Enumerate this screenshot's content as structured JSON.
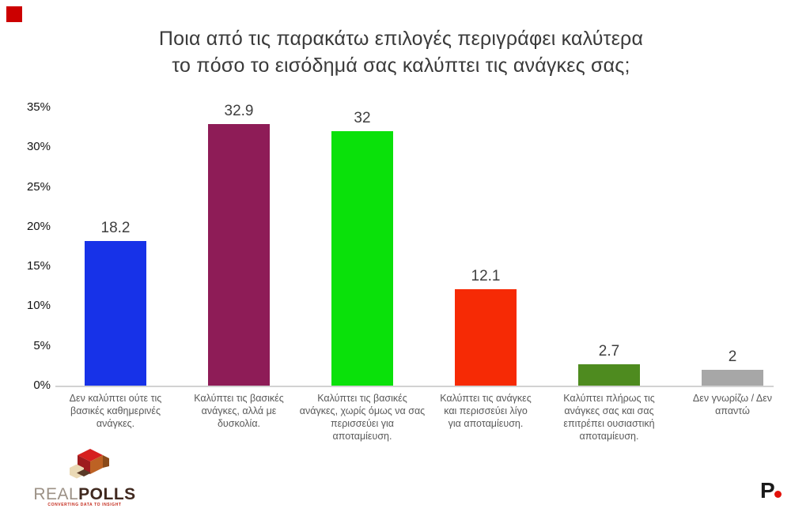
{
  "title": {
    "text": "Ποια από τις παρακάτω επιλογές περιγράφει καλύτερα\nτο πόσο το εισόδημά σας καλύπτει τις ανάγκες σας;"
  },
  "corner_mark": {
    "color": "#cc0000"
  },
  "chart_data": {
    "type": "bar",
    "title": "Ποια από τις παρακάτω επιλογές περιγράφει καλύτερα το πόσο το εισόδημά σας καλύπτει τις ανάγκες σας;",
    "categories": [
      "Δεν καλύπτει ούτε τις βασικές καθημερινές ανάγκες.",
      "Καλύπτει τις βασικές ανάγκες, αλλά με δυσκολία.",
      "Καλύπτει τις βασικές ανάγκες, χωρίς όμως να σας περισσεύει για αποταμίευση.",
      "Καλύπτει τις ανάγκες και περισσεύει λίγο για αποταμίευση.",
      "Καλύπτει πλήρως τις ανάγκες σας και σας επιτρέπει ουσιαστική αποταμίευση.",
      "Δεν γνωρίζω / Δεν απαντώ"
    ],
    "category_display": [
      "Δεν καλύπτει ούτε τις\nβασικές καθημερινές\nανάγκες.",
      "Καλύπτει τις βασικές\nανάγκες, αλλά με\nδυσκολία.",
      "Καλύπτει τις βασικές\nανάγκες, χωρίς όμως να σας\nπερισσεύει για\nαποταμίευση.",
      "Καλύπτει τις ανάγκες\nκαι περισσεύει λίγο\nγια αποταμίευση.",
      "Καλύπτει πλήρως τις\nανάγκες σας  και σας\nεπιτρέπει  ουσιαστική\nαποταμίευση.",
      "Δεν γνωρίζω / Δεν\nαπαντώ"
    ],
    "values": [
      18.2,
      32.9,
      32,
      12.1,
      2.7,
      2
    ],
    "value_labels": [
      "18.2",
      "32.9",
      "32",
      "12.1",
      "2.7",
      "2"
    ],
    "bar_colors": [
      "#1732e8",
      "#8e1c57",
      "#0ae10a",
      "#f62a05",
      "#4e8b1f",
      "#a7a7a7"
    ],
    "y_tick_labels": [
      "35%",
      "30%",
      "25%",
      "20%",
      "15%",
      "10%",
      "5%",
      "0%"
    ],
    "y_tick_values": [
      35,
      30,
      25,
      20,
      15,
      10,
      5,
      0
    ],
    "ylim": [
      0,
      35
    ],
    "xlabel": "",
    "ylabel": "",
    "grid": false,
    "legend": false,
    "background": "#ffffff"
  },
  "footer": {
    "realpolls_logo": {
      "text_light": "REAL",
      "text_bold": "POLLS",
      "tagline": "CONVERTING DATA TO INSIGHT",
      "color_light": "#9c9186",
      "color_bold": "#40291f",
      "tagline_color": "#c42a1c"
    },
    "p_logo": {
      "letter": "P",
      "dot_color": "#e3120b"
    }
  }
}
